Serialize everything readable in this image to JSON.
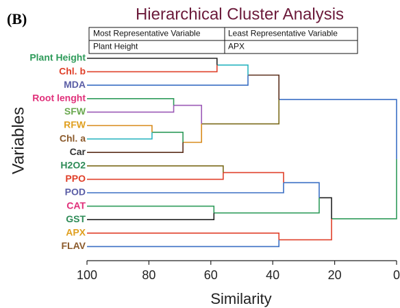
{
  "chart_data": {
    "type": "dendrogram",
    "panel_label": "(B)",
    "title": "Hierarchical Cluster Analysis",
    "table": {
      "header": [
        "Most Representative Variable",
        "Least Representative Variable"
      ],
      "rows": [
        [
          "Plant Height",
          "APX"
        ]
      ]
    },
    "x_label": "Similarity",
    "y_label": "Variables",
    "xlim": [
      100,
      0
    ],
    "xticks": [
      100,
      80,
      60,
      40,
      20,
      0
    ],
    "tree": {
      "similarity": 0,
      "children": [
        {
          "similarity": 38,
          "color": "#3a6fc4",
          "children": [
            {
              "similarity": 48,
              "color": "#5a2d1a",
              "children": [
                {
                  "similarity": 58,
                  "color": "#2bb5c0",
                  "children": [
                    {
                      "name": "Plant Height",
                      "label_color": "#2e9b5a",
                      "color": "#222222"
                    },
                    {
                      "name": "Chl. b",
                      "label_color": "#e0402a",
                      "color": "#e0402a"
                    }
                  ]
                },
                {
                  "name": "MDA",
                  "label_color": "#5b5ea6",
                  "color": "#3a6fc4"
                }
              ]
            },
            {
              "similarity": 63,
              "color": "#7a6a1a",
              "children": [
                {
                  "similarity": 72,
                  "color": "#9b59b6",
                  "children": [
                    {
                      "name": "Root lenght",
                      "label_color": "#e0307a",
                      "color": "#2e9b5a"
                    },
                    {
                      "name": "SFW",
                      "label_color": "#6aa84f",
                      "color": "#9b59b6"
                    }
                  ]
                },
                {
                  "similarity": 69,
                  "color": "#d88a1a",
                  "children": [
                    {
                      "similarity": 79,
                      "color": "#2e9b5a",
                      "children": [
                        {
                          "name": "RFW",
                          "label_color": "#e0a020",
                          "color": "#d88a1a"
                        },
                        {
                          "name": "Chl. a",
                          "label_color": "#8b5a2b",
                          "color": "#2bb5c0"
                        }
                      ]
                    },
                    {
                      "name": "Car",
                      "label_color": "#333333",
                      "color": "#5a2d1a"
                    }
                  ]
                }
              ]
            }
          ]
        },
        {
          "similarity": 21,
          "color": "#2e9b5a",
          "children": [
            {
              "similarity": 25,
              "color": "#222222",
              "children": [
                {
                  "similarity": 36.5,
                  "color": "#3a6fc4",
                  "children": [
                    {
                      "similarity": 56,
                      "color": "#e0402a",
                      "children": [
                        {
                          "name": "H2O2",
                          "label_color": "#2e8b57",
                          "color": "#7a6a1a"
                        },
                        {
                          "name": "PPO",
                          "label_color": "#e0402a",
                          "color": "#e0402a"
                        }
                      ]
                    },
                    {
                      "name": "POD",
                      "label_color": "#5b5ea6",
                      "color": "#3a6fc4"
                    }
                  ]
                },
                {
                  "similarity": 59,
                  "color": "#2e9b5a",
                  "children": [
                    {
                      "name": "CAT",
                      "label_color": "#e0307a",
                      "color": "#2e9b5a"
                    },
                    {
                      "name": "GST",
                      "label_color": "#2e8b57",
                      "color": "#222222"
                    }
                  ]
                }
              ]
            },
            {
              "similarity": 38,
              "color": "#e0402a",
              "children": [
                {
                  "name": "APX",
                  "label_color": "#e0a020",
                  "color": "#e0402a"
                },
                {
                  "name": "FLAV",
                  "label_color": "#8b5a2b",
                  "color": "#3a6fc4"
                }
              ]
            }
          ]
        }
      ]
    }
  }
}
